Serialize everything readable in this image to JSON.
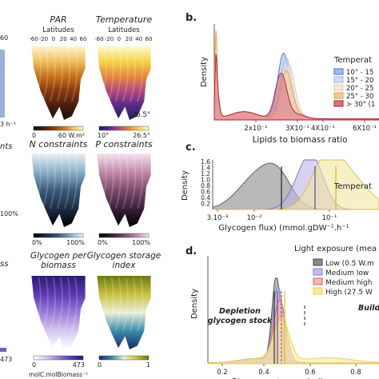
{
  "chart_data": [
    {
      "type": "heatmap",
      "panel": "a",
      "maps": [
        {
          "title": "PAR",
          "xlabel": "Latitudes",
          "xticks": [
            "-60",
            "-20",
            "0",
            "20",
            "40",
            "60"
          ],
          "colorbar_ticks": [
            "0",
            "60 W.m²"
          ],
          "cmap": [
            "#111111",
            "#4a1f0c",
            "#8a3a0c",
            "#c8741a",
            "#f0c060",
            "#fff4cf"
          ]
        },
        {
          "title": "Temperature",
          "xlabel": "Latitudes",
          "xticks": [
            "-60",
            "-20",
            "0",
            "20",
            "40",
            "60"
          ],
          "colorbar_ticks": [
            "10°",
            "26.5°"
          ],
          "annotation": "26.5°",
          "cmap": [
            "#1a1f5c",
            "#5a2a8a",
            "#b44a7a",
            "#e88a3a",
            "#f7d44a",
            "#fdfbd0"
          ]
        },
        {
          "title": "N constraints",
          "colorbar_ticks": [
            "0%",
            "100%"
          ],
          "cmap": [
            "#000000",
            "#1c2d44",
            "#3a5a7a",
            "#8ab0c8",
            "#e8f0f4"
          ]
        },
        {
          "title": "P constraints",
          "colorbar_ticks": [
            "0%",
            "100%"
          ],
          "cmap": [
            "#000000",
            "#3a1f3a",
            "#7a4a6a",
            "#c08aa8",
            "#f4e4ee"
          ]
        },
        {
          "title": "Glycogen per biomass",
          "colorbar_ticks": [
            "0",
            "473"
          ],
          "colorbar_label": "molC.molBiomass⁻¹",
          "cmap": [
            "#ffffff",
            "#d6c8f0",
            "#9a7ad8",
            "#5a3ab0",
            "#2a1a70"
          ]
        },
        {
          "title": "Glycogen storage index",
          "colorbar_ticks": [
            "0",
            "1"
          ],
          "cmap": [
            "#1a2a6a",
            "#3a8aa8",
            "#e8f0d8",
            "#c8c040",
            "#6a7a10"
          ]
        }
      ],
      "left_fragments": [
        "60",
        "3 h⁻¹",
        "nts",
        "100%",
        "ss",
        "473"
      ]
    },
    {
      "type": "area",
      "panel": "b",
      "label": "b.",
      "xlabel": "Lipids to biomass ratio",
      "ylabel": "Density",
      "xticks": [
        "2x10⁻¹",
        "3X10⁻¹",
        "4X10⁻¹",
        "6X10⁻¹"
      ],
      "legend_title": "Temperat",
      "series": [
        {
          "name": "10° - 15",
          "color": "#4a6fd0",
          "fill": "#a8b8f0",
          "peak": 0.345,
          "height": 0.72
        },
        {
          "name": "15° - 20",
          "color": "#9ab0e8",
          "fill": "#d0dcf6",
          "peak": 0.35,
          "height": 0.66
        },
        {
          "name": "20° - 25",
          "color": "#e0c8b0",
          "fill": "#f4e8dc",
          "peak": 0.355,
          "height": 0.58
        },
        {
          "name": "25° - 30",
          "color": "#f0a040",
          "fill": "#f8c890",
          "peak": 0.35,
          "height": 0.52
        },
        {
          "name": "> 30° (1",
          "color": "#b01838",
          "fill": "#d87080",
          "peak": 0.34,
          "height": 0.5
        }
      ]
    },
    {
      "type": "area",
      "panel": "c",
      "label": "c.",
      "xlabel": "Glycogen flux) (mmol.gDW⁻¹.h⁻¹",
      "ylabel": "Density",
      "yticks": [
        "0.0",
        "0.2",
        "0.4",
        "0.6",
        "0.8",
        "1.0",
        "1.2",
        "1.4",
        "1.6"
      ],
      "xticks": [
        "3.10⁻³",
        "10⁻²",
        "10⁻¹"
      ],
      "legend_title": "Temperat",
      "series": [
        {
          "name": "grey",
          "color": "#555555",
          "fill": "#8a8a8a"
        },
        {
          "name": "purple",
          "color": "#7a6ab8",
          "fill": "#c0b4e4"
        },
        {
          "name": "yellow",
          "color": "#d8c040",
          "fill": "#f0e6a0"
        }
      ]
    },
    {
      "type": "area",
      "panel": "d",
      "label": "d.",
      "xlabel": "Glycogen storage indices",
      "ylabel": "Density",
      "xticks": [
        "0.2",
        "0.4",
        "0.6",
        "0.8"
      ],
      "legend_title": "Light exposure (mea",
      "annotations": [
        "Depletion glycogen stock",
        "Building gly"
      ],
      "series": [
        {
          "name": "Low (0.5 W.m",
          "color": "#444444",
          "fill": "#8a8a8a"
        },
        {
          "name": "Medium low",
          "color": "#8a7ac0",
          "fill": "#c8bce8"
        },
        {
          "name": "Medium high",
          "color": "#d06060",
          "fill": "#f4b8b0"
        },
        {
          "name": "High (27.5 W",
          "color": "#e8d040",
          "fill": "#f4eaa0"
        }
      ]
    }
  ],
  "labels": {
    "panel_b": "b.",
    "panel_c": "c.",
    "panel_d": "d."
  }
}
